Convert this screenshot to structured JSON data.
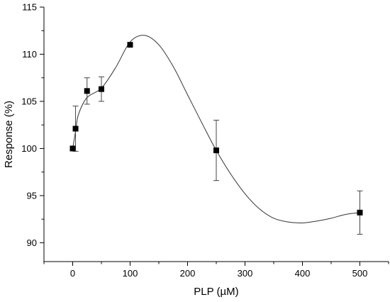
{
  "chart_data": {
    "type": "scatter",
    "title": "",
    "xlabel": "PLP (µM)",
    "ylabel": "Response (%)",
    "xlim": [
      -50,
      550
    ],
    "ylim": [
      88,
      115
    ],
    "x_ticks": [
      0,
      100,
      200,
      300,
      400,
      500
    ],
    "y_ticks": [
      90,
      95,
      100,
      105,
      110,
      115
    ],
    "grid": false,
    "legend": "none",
    "marker": "square",
    "marker_color": "#000000",
    "line_color": "#333333",
    "series": [
      {
        "x": [
          0,
          5,
          25,
          50,
          100,
          250,
          500
        ],
        "y": [
          100.0,
          102.1,
          106.1,
          106.3,
          111.0,
          99.8,
          93.2
        ],
        "yerr": [
          0,
          2.4,
          1.4,
          1.3,
          0,
          3.2,
          2.3
        ]
      }
    ],
    "fit_curve": {
      "x": [
        0,
        5,
        10,
        25,
        50,
        75,
        100,
        125,
        150,
        175,
        200,
        225,
        250,
        275,
        300,
        325,
        350,
        375,
        400,
        425,
        450,
        475,
        500
      ],
      "y": [
        100.0,
        101.8,
        103.6,
        105.4,
        106.4,
        108.6,
        111.3,
        112.0,
        111.0,
        108.7,
        105.7,
        102.7,
        99.8,
        97.3,
        95.2,
        93.6,
        92.6,
        92.2,
        92.1,
        92.3,
        92.6,
        93.0,
        93.2
      ]
    }
  }
}
